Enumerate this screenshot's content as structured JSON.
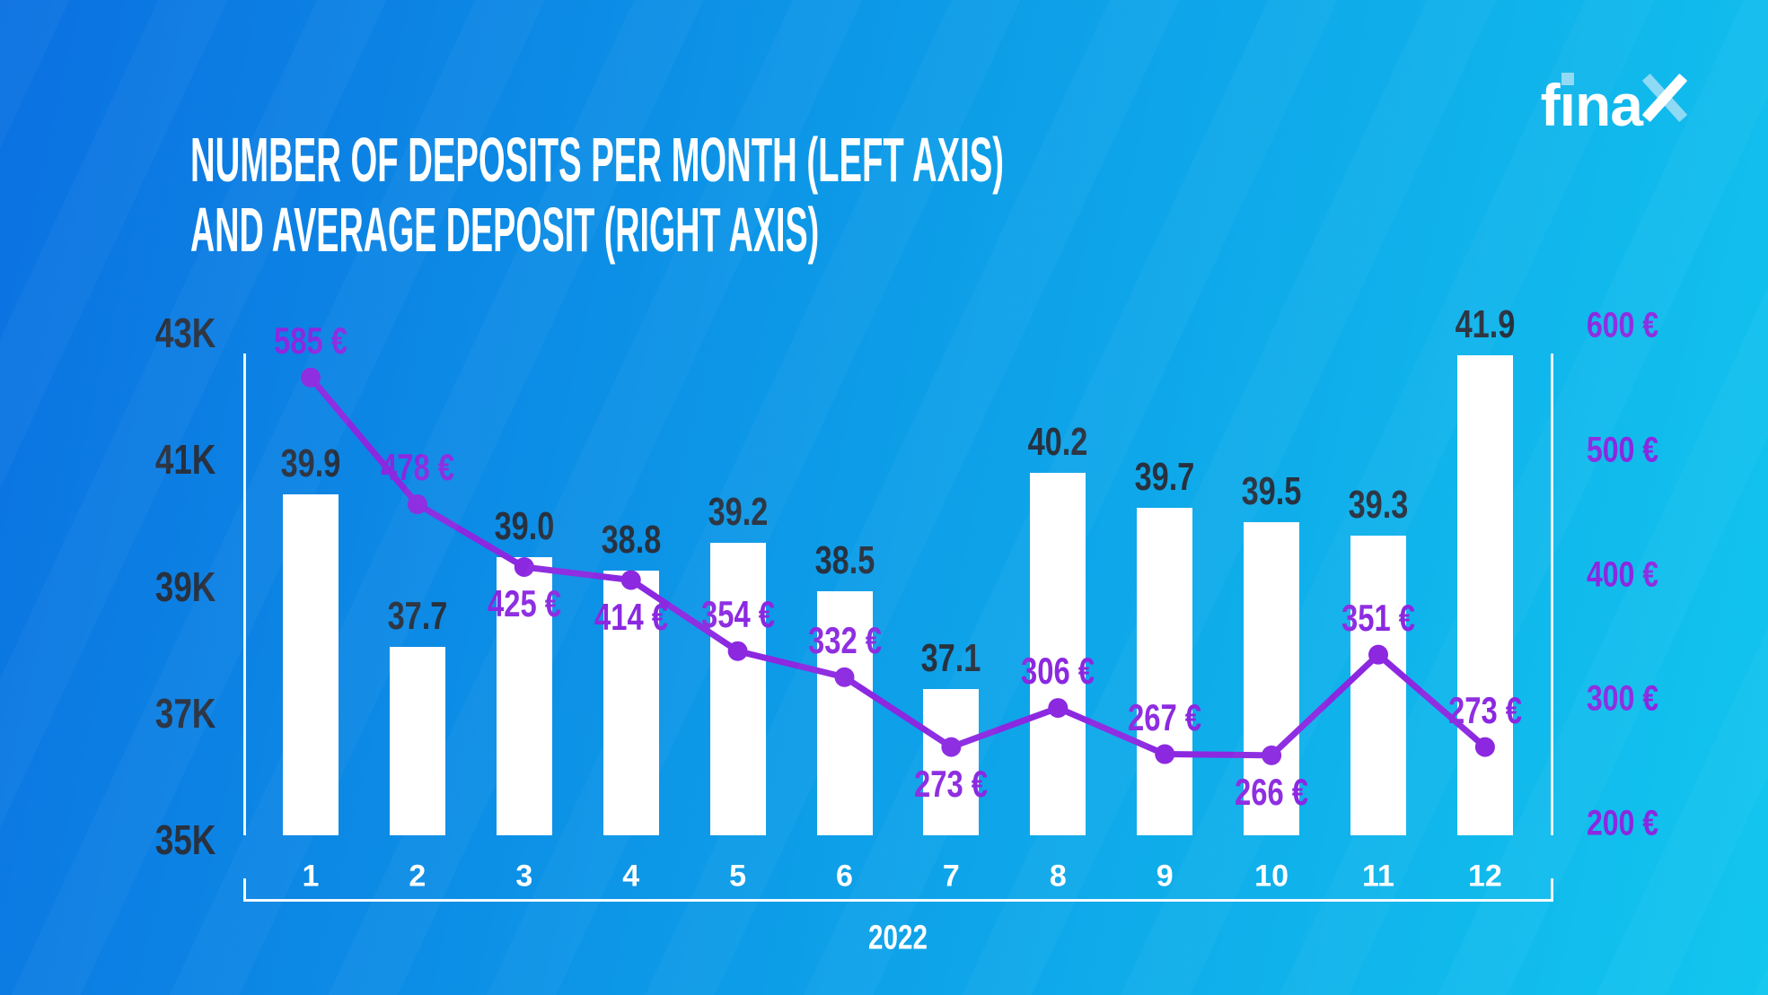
{
  "title": {
    "line1": "NUMBER OF DEPOSITS PER MONTH (LEFT AXIS)",
    "line2": "AND AVERAGE DEPOSIT (RIGHT AXIS)"
  },
  "logo": {
    "text": "finax"
  },
  "x_axis": {
    "year_label": "2022"
  },
  "colors": {
    "background_left": "#0b71e1",
    "background_right": "#12c6ee",
    "bar_fill": "#ffffff",
    "bar_value_text": "#28313f",
    "purple": "#8b28e0",
    "axis_line": "#ffffff",
    "logo_accent": "#8ed9f4",
    "title_text": "#ffffff"
  },
  "chart_data": {
    "type": "bar+line",
    "title": "Number of deposits per month (left axis) and average deposit (right axis)",
    "categories": [
      "1",
      "2",
      "3",
      "4",
      "5",
      "6",
      "7",
      "8",
      "9",
      "10",
      "11",
      "12"
    ],
    "series": [
      {
        "name": "Number of deposits per month",
        "type": "bar",
        "axis": "left",
        "values": [
          39.9,
          37.7,
          39.0,
          38.8,
          39.2,
          38.5,
          37.1,
          40.2,
          39.7,
          39.5,
          39.3,
          41.9
        ],
        "labels": [
          "39.9",
          "37.7",
          "39.0",
          "38.8",
          "39.2",
          "38.5",
          "37.1",
          "40.2",
          "39.7",
          "39.5",
          "39.3",
          "41.9"
        ],
        "unit": "K"
      },
      {
        "name": "Average deposit",
        "type": "line",
        "axis": "right",
        "values": [
          585,
          478,
          425,
          414,
          354,
          332,
          273,
          306,
          267,
          266,
          351,
          273
        ],
        "labels": [
          "585 €",
          "478 €",
          "425 €",
          "414 €",
          "354 €",
          "332 €",
          "273 €",
          "306 €",
          "267 €",
          "266 €",
          "351 €",
          "273 €"
        ],
        "label_positions": [
          "above",
          "above",
          "below",
          "below",
          "above",
          "above",
          "below",
          "above",
          "above",
          "below",
          "above",
          "above"
        ],
        "unit": "€"
      }
    ],
    "left_axis": {
      "tick_labels": [
        "43K",
        "41K",
        "39K",
        "37K",
        "35K"
      ],
      "range_thousands": [
        35,
        43
      ],
      "grid": false
    },
    "right_axis": {
      "tick_labels": [
        "600 €",
        "500 €",
        "400 €",
        "300 €",
        "200 €"
      ],
      "range_eur": [
        200,
        600
      ],
      "grid": false
    },
    "x_label": "2022",
    "legend": "none"
  }
}
